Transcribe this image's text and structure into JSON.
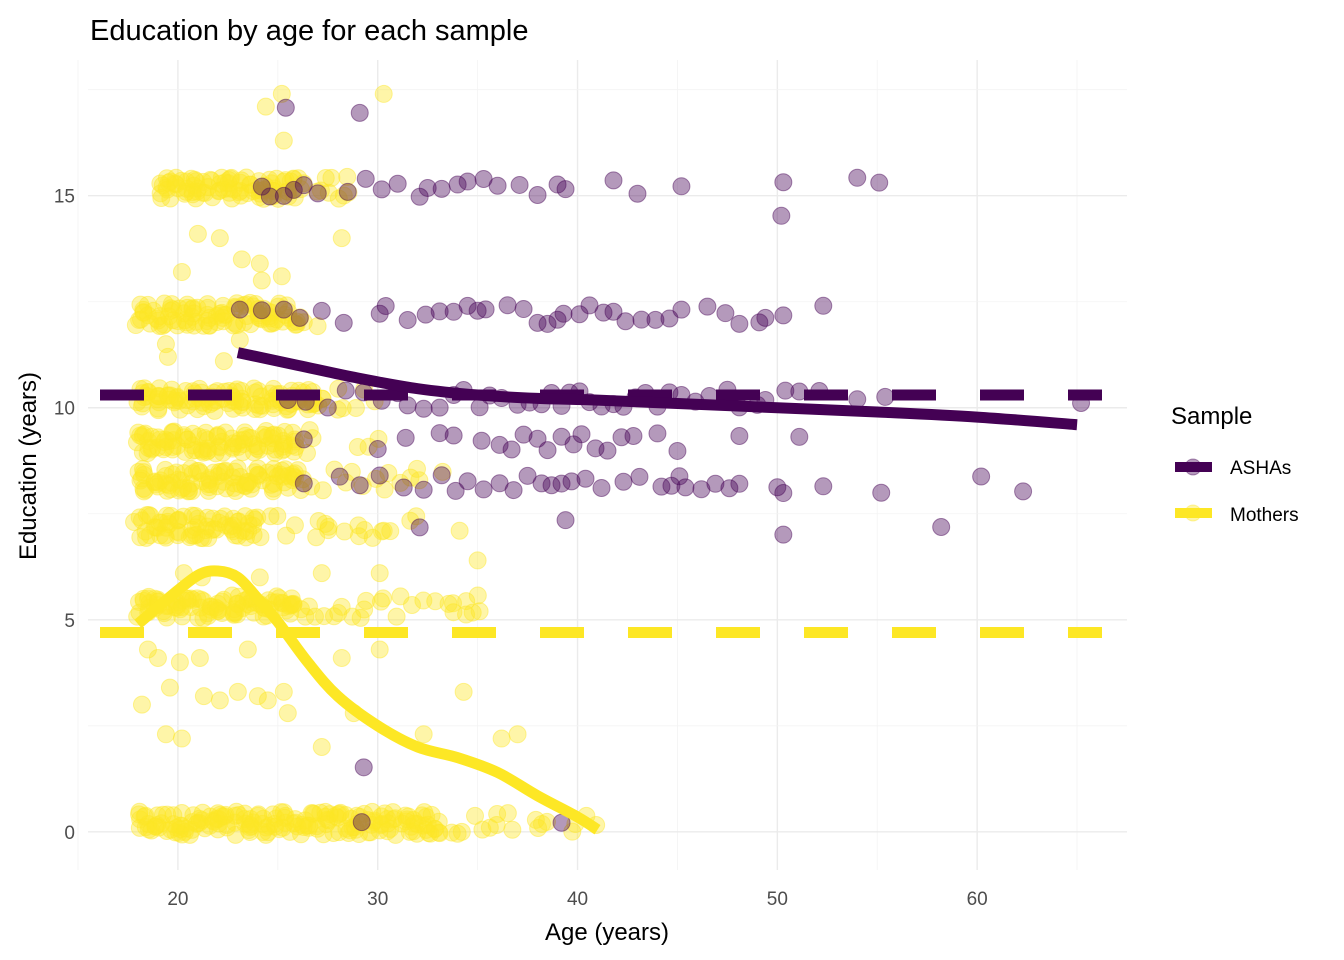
{
  "chart_data": {
    "type": "scatter",
    "title": "Education by age for each sample",
    "xlabel": "Age (years)",
    "ylabel": "Education (years)",
    "xlim": [
      15.5,
      67.5
    ],
    "ylim": [
      -0.9,
      18.2
    ],
    "x_ticks": [
      20,
      30,
      40,
      50,
      60
    ],
    "y_ticks": [
      0,
      5,
      10,
      15
    ],
    "x_tick_labels": [
      "20",
      "30",
      "40",
      "50",
      "60"
    ],
    "y_tick_labels": [
      "0",
      "5",
      "10",
      "15"
    ],
    "grid": true,
    "legend": {
      "title": "Sample",
      "placement": "right",
      "entries": [
        {
          "label": "ASHAs",
          "color": "#440154"
        },
        {
          "label": "Mothers",
          "color": "#FDE725"
        }
      ]
    },
    "series": [
      {
        "name": "ASHAs",
        "color": "#440154",
        "point_alpha": 0.4,
        "mean_line": 10.3,
        "smooth": {
          "x": [
            23,
            26,
            29,
            32,
            35,
            38,
            41,
            45,
            50,
            55,
            60,
            65
          ],
          "y": [
            11.3,
            11.0,
            10.7,
            10.45,
            10.3,
            10.22,
            10.18,
            10.1,
            10.0,
            9.9,
            9.78,
            9.6
          ]
        },
        "clusters": [
          {
            "edu": 15.2,
            "ages": [
              24.2,
              24.6,
              25.3,
              25.8,
              26.3,
              27.0,
              28.5,
              29.4,
              30.2,
              31.0,
              32.1,
              32.5,
              33.2,
              34.0,
              34.5,
              35.3,
              36.0,
              37.1,
              38.0,
              39.0,
              39.4,
              41.8,
              43.0,
              45.2,
              50.3,
              54.0,
              55.1
            ]
          },
          {
            "edu": 12.2,
            "ages": [
              23.1,
              24.2,
              25.3,
              26.1,
              27.2,
              28.3,
              30.1,
              30.4,
              31.5,
              32.4,
              33.1,
              33.8,
              34.5,
              35.0,
              35.4,
              36.5,
              37.3,
              38.0,
              38.5,
              39.0,
              39.3,
              40.1,
              40.6,
              41.3,
              41.8,
              42.4,
              43.2,
              43.9,
              44.6,
              45.2,
              46.5,
              47.4,
              48.1,
              49.1,
              49.4,
              50.3,
              52.3
            ]
          },
          {
            "edu": 10.2,
            "ages": [
              25.5,
              26.4,
              27.5,
              28.4,
              29.3,
              30.2,
              31.0,
              31.5,
              32.3,
              33.1,
              33.8,
              34.3,
              35.1,
              35.6,
              36.2,
              37.0,
              37.6,
              38.2,
              38.7,
              39.2,
              39.6,
              40.1,
              40.6,
              41.2,
              41.8,
              42.3,
              42.9,
              43.4,
              44.0,
              44.6,
              45.2,
              45.9,
              46.6,
              47.5,
              48.1,
              49.0,
              49.4,
              50.4,
              51.1,
              52.1,
              54.0,
              55.4,
              65.2
            ]
          },
          {
            "edu": 9.2,
            "ages": [
              26.3,
              30.0,
              31.4,
              33.1,
              33.8,
              35.2,
              36.1,
              36.7,
              37.3,
              38.0,
              38.5,
              39.2,
              39.8,
              40.2,
              40.9,
              41.5,
              42.2,
              42.8,
              44.0,
              45.0,
              48.1,
              51.1
            ]
          },
          {
            "edu": 8.2,
            "ages": [
              26.3,
              28.1,
              29.1,
              30.1,
              31.3,
              32.3,
              33.2,
              33.9,
              34.5,
              35.3,
              36.1,
              36.8,
              37.5,
              38.2,
              38.7,
              39.2,
              39.7,
              40.4,
              41.2,
              42.3,
              43.1,
              44.2,
              44.7,
              45.1,
              45.4,
              46.2,
              46.9,
              47.6,
              48.1,
              50.0,
              50.3,
              52.3,
              55.2,
              60.2,
              62.3
            ]
          },
          {
            "edu": 7.2,
            "ages": [
              32.1,
              39.4,
              50.3,
              58.2
            ]
          },
          {
            "edu": 17.0,
            "ages": [
              25.4,
              29.1
            ]
          },
          {
            "edu": 14.4,
            "ages": [
              50.2
            ]
          },
          {
            "edu": 1.4,
            "ages": [
              29.3
            ]
          },
          {
            "edu": 0.1,
            "ages": [
              29.2,
              39.2
            ]
          }
        ]
      },
      {
        "name": "Mothers",
        "color": "#FDE725",
        "point_alpha": 0.4,
        "mean_line": 4.7,
        "smooth": {
          "x": [
            18,
            19.5,
            21,
            22,
            23,
            24,
            25,
            26.5,
            28,
            30,
            32,
            34,
            36,
            38,
            40,
            41
          ],
          "y": [
            4.9,
            5.5,
            6.05,
            6.15,
            6.0,
            5.5,
            4.95,
            4.0,
            3.2,
            2.5,
            2.0,
            1.75,
            1.4,
            0.85,
            0.35,
            0.05
          ]
        },
        "clusters": [
          {
            "edu": 0.2,
            "range": [
              18,
              41
            ],
            "dense_until": 33
          },
          {
            "edu": 8.3,
            "range": [
              18,
              33
            ],
            "dense_until": 26
          },
          {
            "edu": 9.2,
            "range": [
              18,
              30
            ],
            "dense_until": 26
          },
          {
            "edu": 10.2,
            "range": [
              18,
              30
            ],
            "dense_until": 27
          },
          {
            "edu": 12.2,
            "range": [
              18,
              27
            ],
            "dense_until": 26
          },
          {
            "edu": 15.2,
            "range": [
              19,
              29
            ],
            "dense_until": 26
          },
          {
            "edu": 7.2,
            "range": [
              18,
              32
            ],
            "dense_until": 24
          },
          {
            "edu": 5.3,
            "range": [
              18,
              35
            ],
            "dense_until": 26
          }
        ],
        "scattered": [
          [
            18.2,
            3.0
          ],
          [
            18.5,
            4.3
          ],
          [
            19.0,
            4.1
          ],
          [
            19.4,
            2.3
          ],
          [
            20.2,
            2.2
          ],
          [
            19.6,
            3.4
          ],
          [
            20.1,
            4.0
          ],
          [
            21.1,
            4.1
          ],
          [
            21.3,
            3.2
          ],
          [
            22.1,
            3.1
          ],
          [
            23.0,
            3.3
          ],
          [
            23.5,
            4.3
          ],
          [
            24.0,
            3.2
          ],
          [
            24.5,
            3.1
          ],
          [
            25.3,
            3.3
          ],
          [
            25.5,
            2.8
          ],
          [
            27.2,
            2.0
          ],
          [
            28.2,
            4.1
          ],
          [
            28.8,
            2.8
          ],
          [
            30.1,
            4.3
          ],
          [
            32.3,
            2.3
          ],
          [
            34.3,
            3.3
          ],
          [
            36.2,
            2.2
          ],
          [
            37.0,
            2.3
          ],
          [
            25.2,
            17.4
          ],
          [
            24.4,
            17.1
          ],
          [
            30.3,
            17.4
          ],
          [
            25.3,
            16.3
          ],
          [
            20.2,
            13.2
          ],
          [
            21.0,
            14.1
          ],
          [
            23.2,
            13.5
          ],
          [
            24.1,
            13.4
          ],
          [
            25.2,
            13.1
          ],
          [
            28.2,
            14.0
          ],
          [
            22.3,
            11.1
          ],
          [
            23.1,
            11.6
          ],
          [
            19.5,
            11.2
          ],
          [
            20.3,
            6.1
          ],
          [
            21.2,
            6.0
          ],
          [
            24.1,
            6.0
          ],
          [
            27.2,
            6.1
          ],
          [
            30.1,
            6.1
          ],
          [
            35.0,
            6.4
          ],
          [
            30.3,
            7.1
          ],
          [
            34.1,
            7.1
          ],
          [
            35.1,
            5.2
          ],
          [
            24.2,
            13.0
          ],
          [
            19.4,
            11.5
          ],
          [
            22.1,
            14.0
          ]
        ]
      }
    ]
  }
}
